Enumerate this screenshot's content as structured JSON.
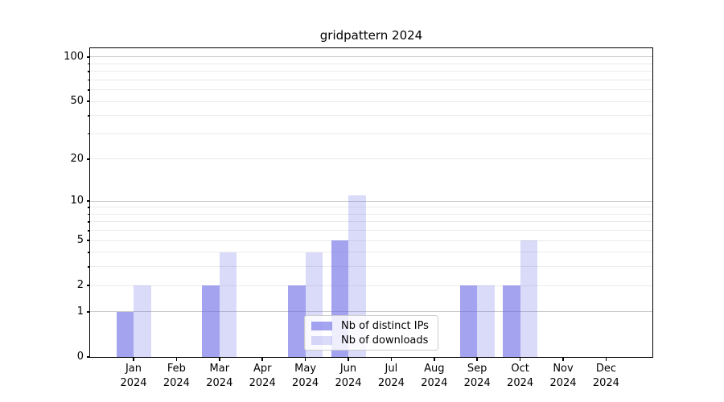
{
  "figure": {
    "title": "gridpattern 2024"
  },
  "chart_data": {
    "type": "bar",
    "title": "gridpattern 2024",
    "categories": [
      "Jan",
      "Feb",
      "Mar",
      "Apr",
      "May",
      "Jun",
      "Jul",
      "Aug",
      "Sep",
      "Oct",
      "Nov",
      "Dec"
    ],
    "x_sublabel": "2024",
    "series": [
      {
        "name": "Nb of distinct IPs",
        "slug": "distinct-ips",
        "base_color": "#6a6ae6",
        "alpha": 0.62,
        "values": [
          1,
          0,
          2,
          0,
          2,
          5,
          0,
          0,
          2,
          2,
          0,
          0
        ]
      },
      {
        "name": "Nb of downloads",
        "slug": "downloads",
        "base_color": "#6a6ae6",
        "alpha": 0.25,
        "values": [
          2,
          0,
          4,
          0,
          4,
          11,
          0,
          0,
          2,
          5,
          0,
          0
        ]
      }
    ],
    "yscale": "log1p",
    "ylim": [
      0,
      114.7
    ],
    "ytick_labels": [
      0,
      1,
      2,
      5,
      10,
      20,
      50,
      100
    ],
    "major_grid_values": [
      1,
      10,
      100
    ],
    "minor_grid_values": [
      2,
      3,
      4,
      5,
      6,
      7,
      8,
      9,
      20,
      30,
      40,
      50,
      60,
      70,
      80,
      90
    ],
    "grid": "both",
    "legend_position": "lower center",
    "xlabel": "",
    "ylabel": ""
  },
  "colors": {
    "major_grid": "#c9c9c9",
    "minor_grid": "#ebebeb",
    "spine": "#000000",
    "text": "#000000",
    "legend_border": "#cccccc",
    "background": "#ffffff"
  }
}
